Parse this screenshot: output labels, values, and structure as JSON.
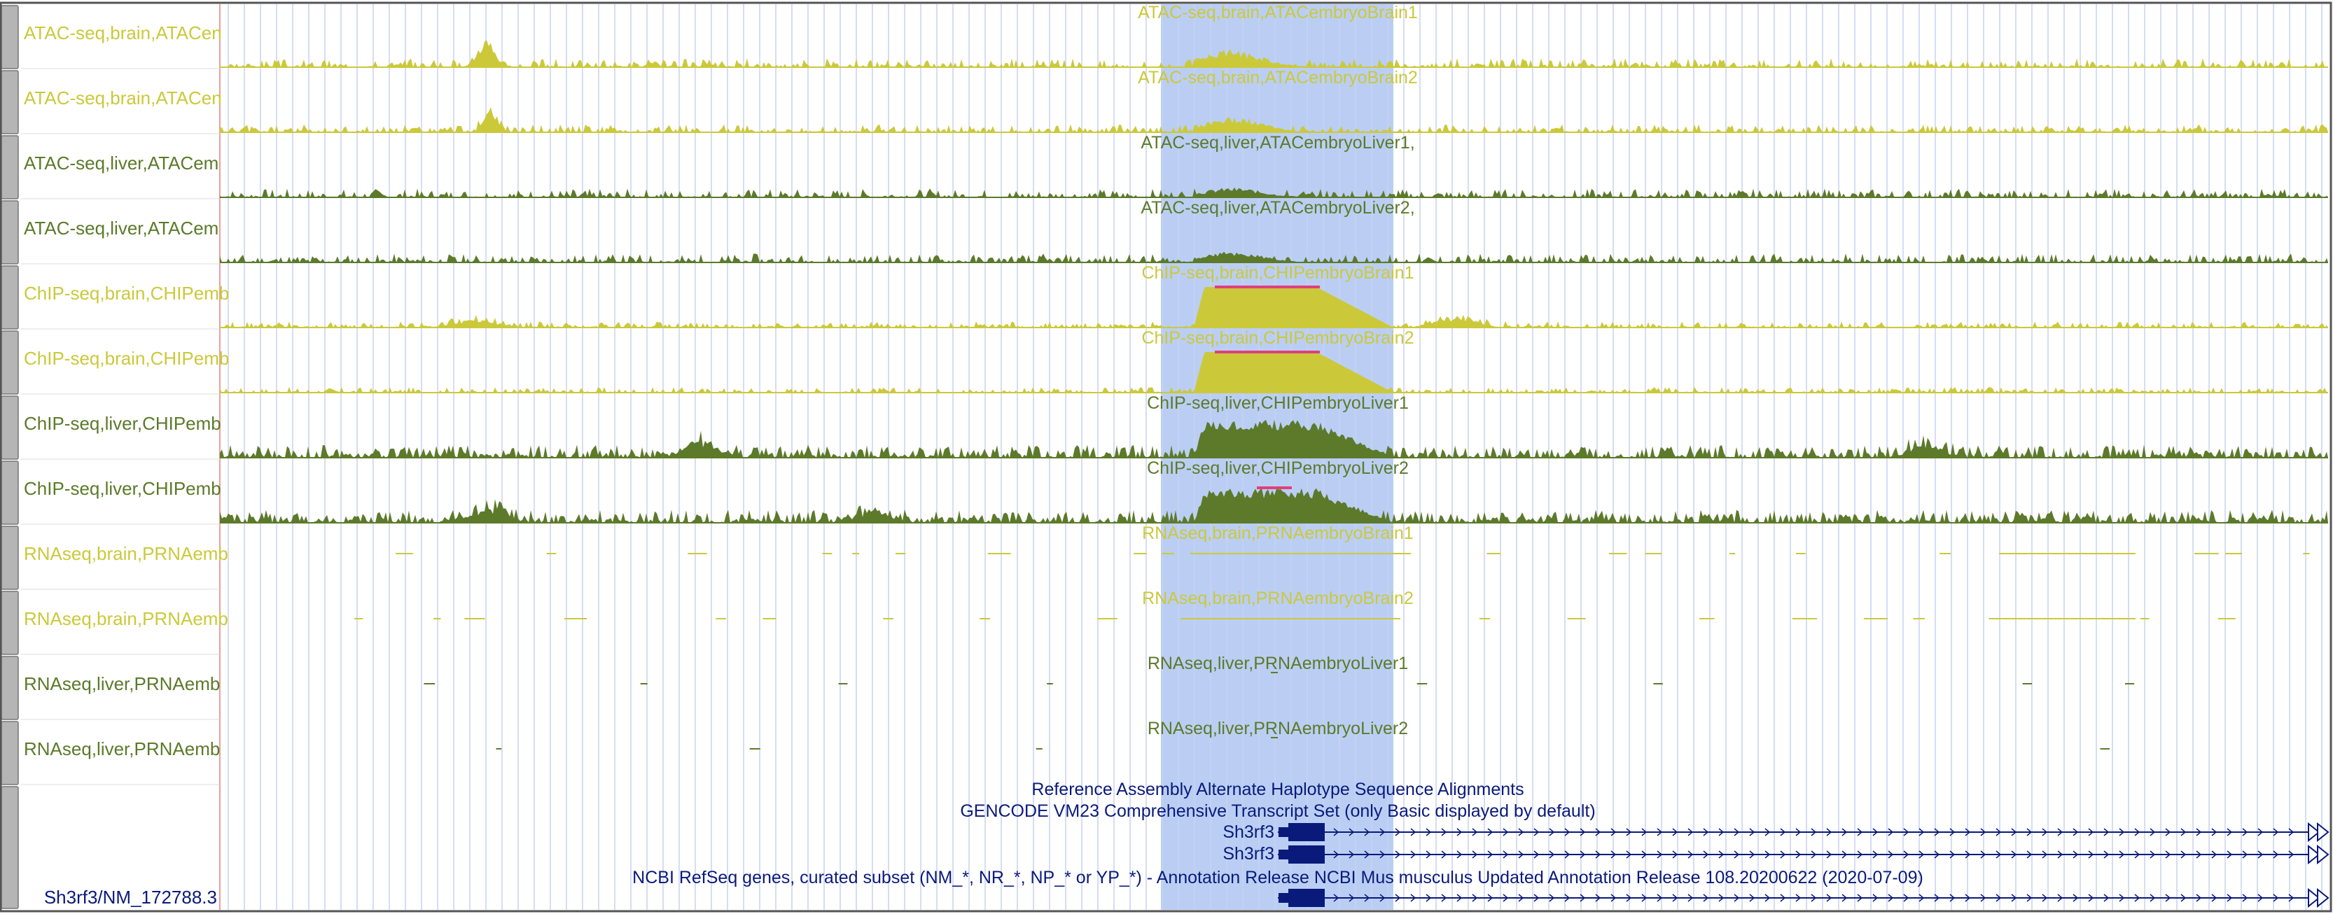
{
  "colors": {
    "brain": "#cbc93a",
    "liver": "#5c7a2a",
    "highlight": "#aec6f2",
    "grid": "#c8d2f0",
    "gene": "#0a1a7a",
    "peak": "#e0407a",
    "frame": "#555555"
  },
  "tracks": [
    {
      "label": "ATAC-seq,brain,ATACen",
      "title": "ATAC-seq,brain,ATACembryoBrain1",
      "tissue": "brain",
      "kind": "signal",
      "seed": 3,
      "amp": 0.22,
      "peak": 0.45,
      "bumps": [
        [
          695,
          0.6,
          18
        ]
      ]
    },
    {
      "label": "ATAC-seq,brain,ATACen",
      "title": "ATAC-seq,brain,ATACembryoBrain2",
      "tissue": "brain",
      "kind": "signal",
      "seed": 5,
      "amp": 0.2,
      "peak": 0.4,
      "bumps": [
        [
          700,
          0.55,
          14
        ]
      ]
    },
    {
      "label": "ATAC-seq,liver,ATACem",
      "title": "ATAC-seq,liver,ATACembryoLiver1,",
      "tissue": "liver",
      "kind": "signal",
      "seed": 7,
      "amp": 0.22,
      "peak": 0.25,
      "bumps": []
    },
    {
      "label": "ATAC-seq,liver,ATACem",
      "title": "ATAC-seq,liver,ATACembryoLiver2,",
      "tissue": "liver",
      "kind": "signal",
      "seed": 11,
      "amp": 0.22,
      "peak": 0.28,
      "bumps": []
    },
    {
      "label": "ChIP-seq,brain,CHIPemb",
      "title": "ChIP-seq,brain,CHIPembryoBrain1",
      "tissue": "brain",
      "kind": "chip",
      "seed": 13,
      "amp": 0.15,
      "peak": 1.0,
      "bumps": [
        [
          680,
          0.2,
          40
        ],
        [
          2080,
          0.25,
          40
        ]
      ]
    },
    {
      "label": "ChIP-seq,brain,CHIPemb",
      "title": "ChIP-seq,brain,CHIPembryoBrain2",
      "tissue": "brain",
      "kind": "chip",
      "seed": 17,
      "amp": 0.14,
      "peak": 1.0,
      "bumps": []
    },
    {
      "label": "ChIP-seq,liver,CHIPemb",
      "title": "ChIP-seq,liver,CHIPembryoLiver1",
      "tissue": "liver",
      "kind": "chip",
      "seed": 19,
      "amp": 0.32,
      "peak": 0.95,
      "bumps": [
        [
          1000,
          0.4,
          30
        ],
        [
          2750,
          0.35,
          30
        ]
      ]
    },
    {
      "label": "ChIP-seq,liver,CHIPemb",
      "title": "ChIP-seq,liver,CHIPembryoLiver2",
      "tissue": "liver",
      "kind": "chip",
      "seed": 23,
      "amp": 0.32,
      "peak": 0.85,
      "bumps": [
        [
          700,
          0.35,
          30
        ],
        [
          1250,
          0.3,
          30
        ]
      ]
    },
    {
      "label": "RNAseq,brain,PRNAemb",
      "title": "RNAseq,brain,PRNAembryoBrain1",
      "tissue": "brain",
      "kind": "rna",
      "seed": 29
    },
    {
      "label": "RNAseq,brain,PRNAemb",
      "title": "RNAseq,brain,PRNAembryoBrain2",
      "tissue": "brain",
      "kind": "rna",
      "seed": 31
    },
    {
      "label": "RNAseq,liver,PRNAemb",
      "title": "RNAseq,liver,PRNAembryoLiver1",
      "tissue": "liver",
      "kind": "rna_sparse",
      "seed": 37
    },
    {
      "label": "RNAseq,liver,PRNAemb",
      "title": "RNAseq,liver,PRNAembryoLiver2",
      "tissue": "liver",
      "kind": "rna_sparse",
      "seed": 41
    }
  ],
  "annotations": {
    "alt_haplotype": "Reference Assembly Alternate Haplotype Sequence Alignments",
    "gencode": "GENCODE VM23 Comprehensive Transcript Set (only Basic displayed by default)",
    "gencode_genes": [
      "Sh3rf3",
      "Sh3rf3"
    ],
    "refseq": "NCBI RefSeq genes, curated subset (NM_*, NR_*, NP_* or YP_*) - Annotation Release NCBI Mus musculus Updated Annotation Release 108.20200622 (2020-07-09)",
    "refseq_label": "Sh3rf3/NM_172788.3"
  }
}
